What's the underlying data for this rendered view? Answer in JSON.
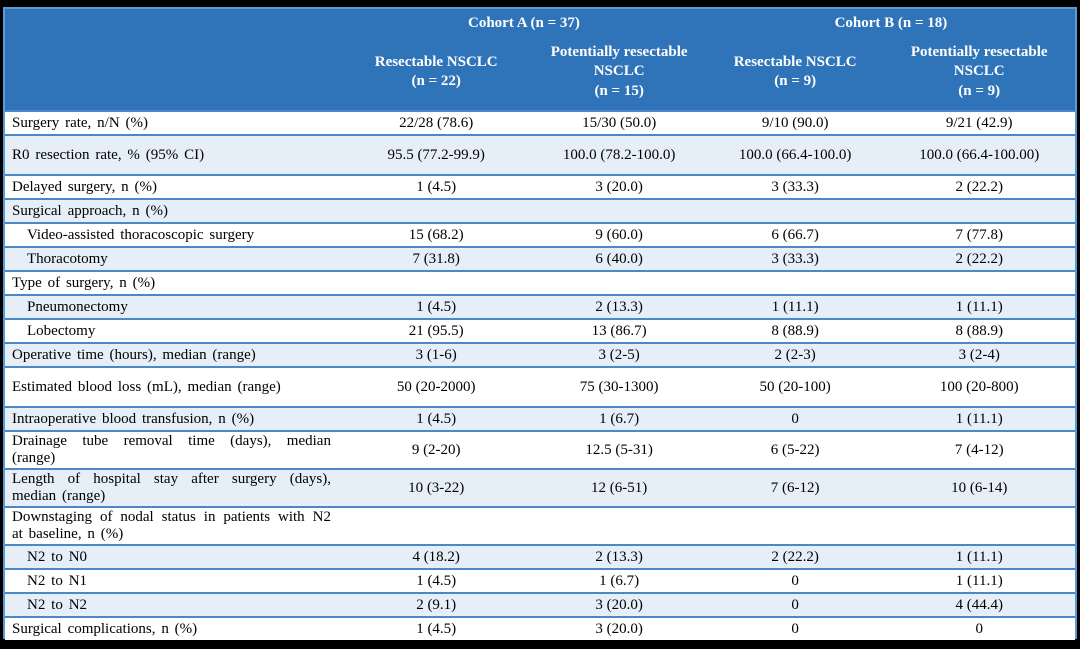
{
  "table": {
    "theme": {
      "header_bg": "#2F74B9",
      "header_text": "#FFFFFF",
      "band_bg": "#E6EEF8",
      "row_border": "#4E87C6",
      "frame_border": "#5B9BD5",
      "matte": "#000000"
    },
    "groups": [
      {
        "label": "Cohort A (n = 37)"
      },
      {
        "label": "Cohort B (n = 18)"
      }
    ],
    "columns": [
      {
        "title": "Resectable NSCLC",
        "n": "(n = 22)"
      },
      {
        "title": "Potentially resectable NSCLC",
        "n": "(n = 15)"
      },
      {
        "title": "Resectable NSCLC",
        "n": "(n = 9)"
      },
      {
        "title": "Potentially resectable NSCLC",
        "n": "(n = 9)"
      }
    ],
    "rows": [
      {
        "label": "Surgery rate, n/N (%)",
        "indent": false,
        "values": [
          "22/28 (78.6)",
          "15/30 (50.0)",
          "9/10 (90.0)",
          "9/21 (42.9)"
        ]
      },
      {
        "label": "R0 resection rate, % (95% CI)",
        "indent": false,
        "values": [
          "95.5 (77.2-99.9)",
          "100.0 (78.2-100.0)",
          "100.0 (66.4-100.0)",
          "100.0 (66.4-100.00)"
        ]
      },
      {
        "label": "Delayed surgery, n (%)",
        "indent": false,
        "values": [
          "1 (4.5)",
          "3 (20.0)",
          "3 (33.3)",
          "2 (22.2)"
        ]
      },
      {
        "label": "Surgical approach, n (%)",
        "indent": false,
        "values": [
          "",
          "",
          "",
          ""
        ]
      },
      {
        "label": "Video-assisted thoracoscopic surgery",
        "indent": true,
        "values": [
          "15 (68.2)",
          "9 (60.0)",
          "6 (66.7)",
          "7 (77.8)"
        ]
      },
      {
        "label": "Thoracotomy",
        "indent": true,
        "values": [
          "7 (31.8)",
          "6 (40.0)",
          "3 (33.3)",
          "2 (22.2)"
        ]
      },
      {
        "label": "Type of surgery, n (%)",
        "indent": false,
        "values": [
          "",
          "",
          "",
          ""
        ]
      },
      {
        "label": "Pneumonectomy",
        "indent": true,
        "values": [
          "1 (4.5)",
          "2 (13.3)",
          "1 (11.1)",
          "1 (11.1)"
        ]
      },
      {
        "label": "Lobectomy",
        "indent": true,
        "values": [
          "21 (95.5)",
          "13 (86.7)",
          "8 (88.9)",
          "8 (88.9)"
        ]
      },
      {
        "label": "Operative time (hours), median (range)",
        "indent": false,
        "values": [
          "3 (1-6)",
          "3 (2-5)",
          "2 (2-3)",
          "3 (2-4)"
        ]
      },
      {
        "label": "Estimated blood loss (mL), median (range)",
        "indent": false,
        "values": [
          "50 (20-2000)",
          "75 (30-1300)",
          "50 (20-100)",
          "100 (20-800)"
        ]
      },
      {
        "label": "Intraoperative blood transfusion, n (%)",
        "indent": false,
        "values": [
          "1 (4.5)",
          "1 (6.7)",
          "0",
          "1 (11.1)"
        ]
      },
      {
        "label": "Drainage tube removal time (days), median (range)",
        "indent": false,
        "values": [
          "9 (2-20)",
          "12.5 (5-31)",
          "6 (5-22)",
          "7 (4-12)"
        ]
      },
      {
        "label": "Length of hospital stay after surgery (days), median (range)",
        "indent": false,
        "values": [
          "10 (3-22)",
          "12 (6-51)",
          "7 (6-12)",
          "10 (6-14)"
        ]
      },
      {
        "label": "Downstaging of nodal status in patients with N2 at baseline, n (%)",
        "indent": false,
        "values": [
          "",
          "",
          "",
          ""
        ]
      },
      {
        "label": "N2 to N0",
        "indent": true,
        "values": [
          "4 (18.2)",
          "2 (13.3)",
          "2 (22.2)",
          "1 (11.1)"
        ]
      },
      {
        "label": "N2 to N1",
        "indent": true,
        "values": [
          "1 (4.5)",
          "1 (6.7)",
          "0",
          "1 (11.1)"
        ]
      },
      {
        "label": "N2 to N2",
        "indent": true,
        "values": [
          "2 (9.1)",
          "3 (20.0)",
          "0",
          "4 (44.4)"
        ]
      },
      {
        "label": "Surgical complications, n (%)",
        "indent": false,
        "values": [
          "1 (4.5)",
          "3 (20.0)",
          "0",
          "0"
        ]
      }
    ]
  }
}
